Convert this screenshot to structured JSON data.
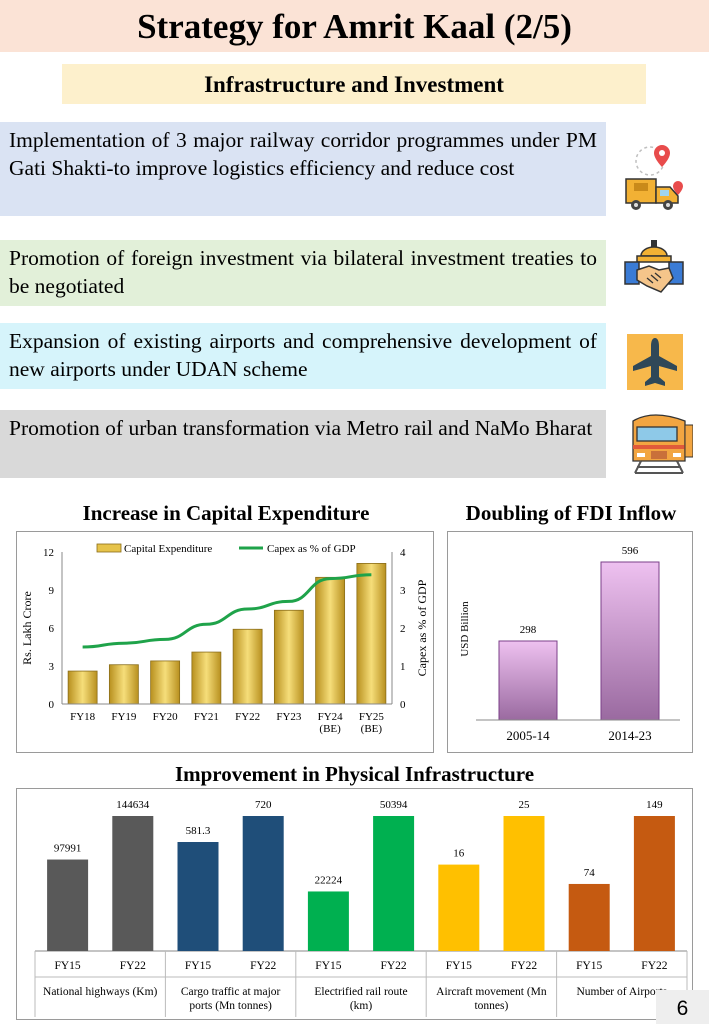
{
  "header": {
    "title": "Strategy for Amrit Kaal (2/5)",
    "subtitle": "Infrastructure and Investment"
  },
  "points": [
    {
      "text": "Implementation of 3 major railway corridor programmes under PM Gati Shakti-to improve logistics efficiency and reduce cost",
      "bg": "#dae3f3",
      "icon": "logistics-truck-icon"
    },
    {
      "text": "Promotion of foreign investment via bilateral investment treaties to be negotiated",
      "bg": "#e2f0d9",
      "icon": "handshake-investment-icon"
    },
    {
      "text": "Expansion of existing airports and comprehensive development of new airports under UDAN scheme",
      "bg": "#d6f4fb",
      "icon": "airplane-icon"
    },
    {
      "text": "Promotion of urban transformation via Metro rail and NaMo Bharat",
      "bg": "#d9d9d9",
      "icon": "metro-train-icon"
    }
  ],
  "chart_data": [
    {
      "type": "bar",
      "title": "Increase in Capital Expenditure",
      "categories": [
        "FY18",
        "FY19",
        "FY20",
        "FY21",
        "FY22",
        "FY23",
        "FY24 (BE)",
        "FY25 (BE)"
      ],
      "series": [
        {
          "name": "Capital Expenditure",
          "type": "bar",
          "axis": "left",
          "values": [
            2.6,
            3.1,
            3.4,
            4.1,
            5.9,
            7.4,
            10.0,
            11.1
          ]
        },
        {
          "name": "Capex as % of GDP",
          "type": "line",
          "axis": "right",
          "values": [
            1.5,
            1.6,
            1.7,
            2.1,
            2.5,
            2.7,
            3.3,
            3.4
          ]
        }
      ],
      "ylabel": "Rs. Lakh Crore",
      "y2label": "Capex as % of GDP",
      "ylim": [
        0,
        12
      ],
      "y2lim": [
        0,
        4
      ],
      "yticks": [
        "0",
        "3",
        "6",
        "9",
        "12"
      ],
      "y2ticks": [
        "0",
        "1",
        "2",
        "3",
        "4"
      ],
      "legend": "top",
      "colors": {
        "bar": "#e6c34a",
        "line": "#1fa34a"
      }
    },
    {
      "type": "bar",
      "title": "Doubling of FDI Inflow",
      "categories": [
        "2005-14",
        "2014-23"
      ],
      "values": [
        298,
        596
      ],
      "value_labels": [
        "298",
        "596"
      ],
      "ylabel": "USD Billion",
      "colors": {
        "bar": "#d9a9dc"
      }
    },
    {
      "type": "bar",
      "title": "Improvement in Physical Infrastructure",
      "groups": [
        {
          "name": "National highways (Km)",
          "color": "#595959",
          "categories": [
            "FY15",
            "FY22"
          ],
          "values": [
            97991,
            144634
          ],
          "labels": [
            "97991",
            "144634"
          ]
        },
        {
          "name": "Cargo traffic at major ports (Mn tonnes)",
          "color": "#1f4e79",
          "categories": [
            "FY15",
            "FY22"
          ],
          "values": [
            581.3,
            720
          ],
          "labels": [
            "581.3",
            "720"
          ]
        },
        {
          "name": "Electrified rail route (km)",
          "color": "#00b050",
          "categories": [
            "FY15",
            "FY22"
          ],
          "values": [
            22224,
            50394
          ],
          "labels": [
            "22224",
            "50394"
          ]
        },
        {
          "name": "Aircraft movement (Mn tonnes)",
          "color": "#ffc000",
          "categories": [
            "FY15",
            "FY22"
          ],
          "values": [
            16,
            25
          ],
          "labels": [
            "16",
            "25"
          ]
        },
        {
          "name": "Number of Airports",
          "color": "#c55a11",
          "categories": [
            "FY15",
            "FY22"
          ],
          "values": [
            74,
            149
          ],
          "labels": [
            "74",
            "149"
          ]
        }
      ]
    }
  ],
  "page_number": "6"
}
